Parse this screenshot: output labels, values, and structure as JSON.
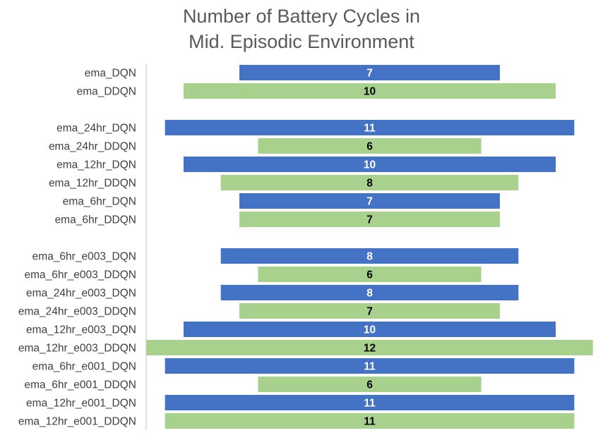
{
  "chart_data": {
    "type": "bar",
    "orientation": "horizontal",
    "layout": "centered",
    "title_lines": [
      "Number of Battery Cycles in",
      "Mid. Episodic Environment"
    ],
    "colors": {
      "DQN": "#4472C4",
      "DDQN": "#A9D18E",
      "label_on_dqn": "#ffffff",
      "label_on_ddqn": "#000000",
      "category_text": "#404040",
      "title": "#595959",
      "axis_line": "#d9d9d9"
    },
    "groups": [
      {
        "bars": [
          {
            "category": "ema_DQN",
            "value": 7,
            "kind": "DQN"
          },
          {
            "category": "ema_DDQN",
            "value": 10,
            "kind": "DDQN"
          }
        ]
      },
      {
        "bars": [
          {
            "category": "ema_24hr_DQN",
            "value": 11,
            "kind": "DQN"
          },
          {
            "category": "ema_24hr_DDQN",
            "value": 6,
            "kind": "DDQN"
          },
          {
            "category": "ema_12hr_DQN",
            "value": 10,
            "kind": "DQN"
          },
          {
            "category": "ema_12hr_DDQN",
            "value": 8,
            "kind": "DDQN"
          },
          {
            "category": "ema_6hr_DQN",
            "value": 7,
            "kind": "DQN"
          },
          {
            "category": "ema_6hr_DDQN",
            "value": 7,
            "kind": "DDQN"
          }
        ]
      },
      {
        "bars": [
          {
            "category": "ema_6hr_e003_DQN",
            "value": 8,
            "kind": "DQN"
          },
          {
            "category": "ema_6hr_e003_DDQN",
            "value": 6,
            "kind": "DDQN"
          },
          {
            "category": "ema_24hr_e003_DQN",
            "value": 8,
            "kind": "DQN"
          },
          {
            "category": "ema_24hr_e003_DDQN",
            "value": 7,
            "kind": "DDQN"
          },
          {
            "category": "ema_12hr_e003_DQN",
            "value": 10,
            "kind": "DQN"
          },
          {
            "category": "ema_12hr_e003_DDQN",
            "value": 12,
            "kind": "DDQN"
          },
          {
            "category": "ema_6hr_e001_DQN",
            "value": 11,
            "kind": "DQN"
          },
          {
            "category": "ema_6hr_e001_DDQN",
            "value": 6,
            "kind": "DDQN"
          },
          {
            "category": "ema_12hr_e001_DQN",
            "value": 11,
            "kind": "DQN"
          },
          {
            "category": "ema_12hr_e001_DDQN",
            "value": 11,
            "kind": "DDQN"
          }
        ]
      }
    ],
    "xlim": [
      0,
      12
    ],
    "grid": false,
    "legend": "none"
  }
}
